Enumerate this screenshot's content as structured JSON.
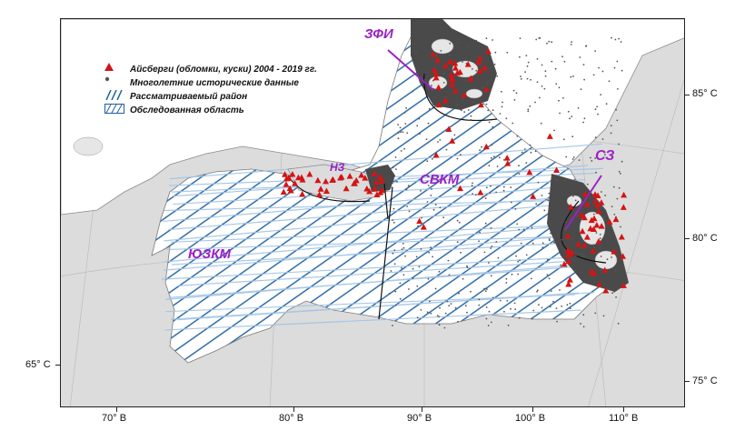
{
  "legend": {
    "items": [
      {
        "label": "Айсберги (обломки, куски) 2004 - 2019 гг.",
        "symbol": "red-triangle"
      },
      {
        "label": "Многолетние исторические данные",
        "symbol": "grey-dot"
      },
      {
        "label": "Рассматриваемый район",
        "symbol": "blue-hatch"
      },
      {
        "label": "Обследованная область",
        "symbol": "hatch-box"
      }
    ]
  },
  "regions": {
    "zfi": "ЗФИ",
    "nz": "НЗ",
    "svkm": "СВКМ",
    "sz": "СЗ",
    "yuzkm": "ЮЗКМ"
  },
  "axes": {
    "bottom": [
      "70° В",
      "80° В",
      "90° В",
      "100° В",
      "110° В"
    ],
    "right": [
      "85° С",
      "80° С",
      "75° С"
    ],
    "left": [
      "65° С"
    ]
  },
  "colors": {
    "land": "#dcdcdc",
    "coast": "#8a8a8a",
    "hatch": "#1f5f9e",
    "hatch_light": "#9fc4e6",
    "iceberg": "#d41414",
    "historic": "#555555",
    "cluster": "#4a4a4a",
    "region_label": "#9b22c6"
  }
}
